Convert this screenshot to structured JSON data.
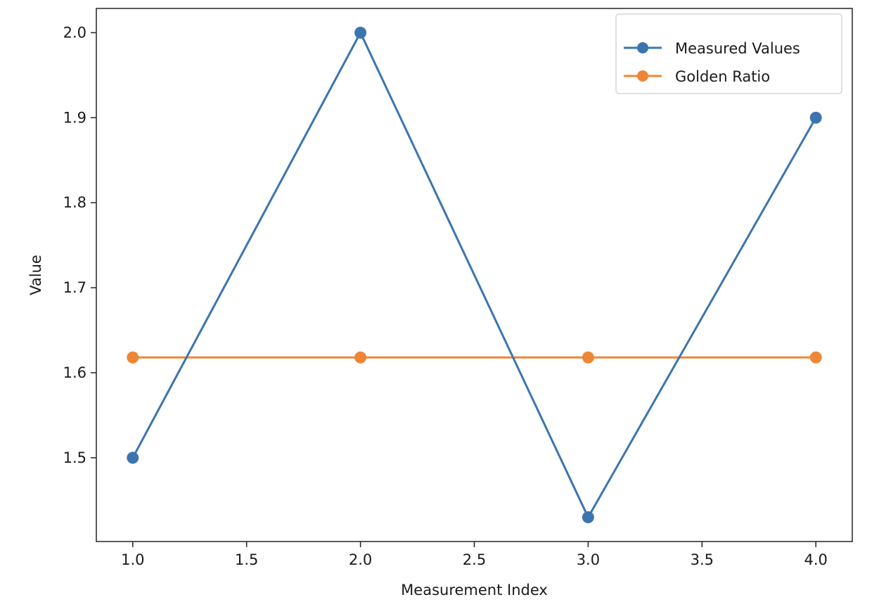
{
  "chart_data": {
    "type": "line",
    "title": "",
    "xlabel": "Measurement Index",
    "ylabel": "Value",
    "xlim": [
      0.84,
      4.16
    ],
    "ylim": [
      1.4015,
      2.0285
    ],
    "x_ticks": [
      1.0,
      1.5,
      2.0,
      2.5,
      3.0,
      3.5,
      4.0
    ],
    "x_tick_labels": [
      "1.0",
      "1.5",
      "2.0",
      "2.5",
      "3.0",
      "3.5",
      "4.0"
    ],
    "y_ticks": [
      1.5,
      1.6,
      1.7,
      1.8,
      1.9,
      2.0
    ],
    "y_tick_labels": [
      "1.5",
      "1.6",
      "1.7",
      "1.8",
      "1.9",
      "2.0"
    ],
    "grid": false,
    "legend_position": "top-right",
    "x": [
      1,
      2,
      3,
      4
    ],
    "series": [
      {
        "name": "Measured Values",
        "values": [
          1.5,
          2.0,
          1.43,
          1.9
        ],
        "color": "#3b75af",
        "marker": "circle"
      },
      {
        "name": "Golden Ratio",
        "values": [
          1.618,
          1.618,
          1.618,
          1.618
        ],
        "color": "#ef8636",
        "marker": "circle"
      }
    ]
  }
}
